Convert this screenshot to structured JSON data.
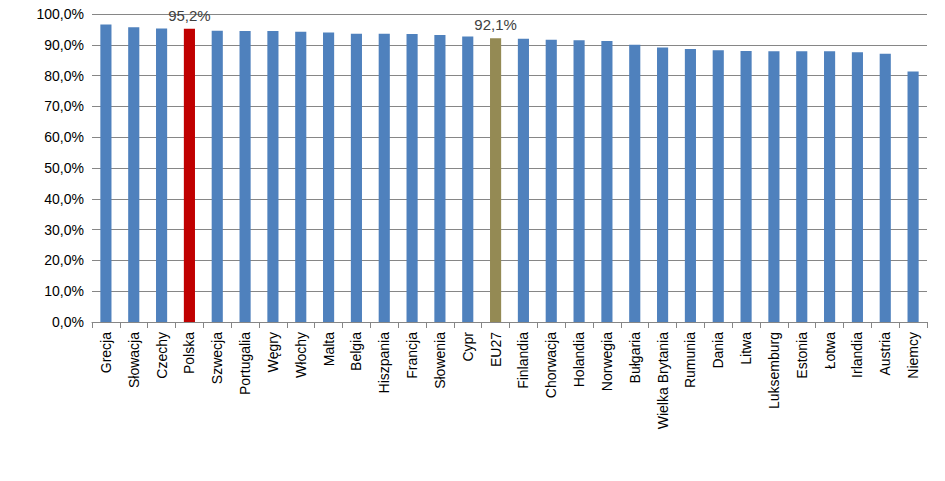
{
  "chart_data": {
    "type": "bar",
    "categories": [
      "Grecja",
      "Słowacja",
      "Czechy",
      "Polska",
      "Szwecja",
      "Portugalia",
      "Węgry",
      "Włochy",
      "Malta",
      "Belgia",
      "Hiszpania",
      "Francja",
      "Słowenia",
      "Cypr",
      "EU27",
      "Finlandia",
      "Chorwacja",
      "Holandia",
      "Norwegia",
      "Bułgaria",
      "Wielka Brytania",
      "Rumunia",
      "Dania",
      "Litwa",
      "Luksemburg",
      "Estonia",
      "Łotwa",
      "Irlandia",
      "Austria",
      "Niemcy"
    ],
    "values": [
      96.6,
      95.7,
      95.3,
      95.2,
      94.6,
      94.5,
      94.5,
      94.2,
      94.0,
      93.6,
      93.6,
      93.5,
      93.2,
      92.7,
      92.1,
      92.0,
      91.6,
      91.5,
      91.2,
      90.0,
      89.1,
      88.6,
      88.2,
      88.0,
      87.9,
      87.9,
      87.9,
      87.6,
      87.1,
      81.3
    ],
    "value_labels": [
      null,
      null,
      null,
      "95,2%",
      null,
      null,
      null,
      null,
      null,
      null,
      null,
      null,
      null,
      null,
      "92,1%",
      null,
      null,
      null,
      null,
      null,
      null,
      null,
      null,
      null,
      null,
      null,
      null,
      null,
      null,
      null
    ],
    "colors": [
      "#4F81BD",
      "#4F81BD",
      "#4F81BD",
      "#C00000",
      "#4F81BD",
      "#4F81BD",
      "#4F81BD",
      "#4F81BD",
      "#4F81BD",
      "#4F81BD",
      "#4F81BD",
      "#4F81BD",
      "#4F81BD",
      "#4F81BD",
      "#948A54",
      "#4F81BD",
      "#4F81BD",
      "#4F81BD",
      "#4F81BD",
      "#4F81BD",
      "#4F81BD",
      "#4F81BD",
      "#4F81BD",
      "#4F81BD",
      "#4F81BD",
      "#4F81BD",
      "#4F81BD",
      "#4F81BD",
      "#4F81BD",
      "#4F81BD"
    ],
    "ylim": [
      0,
      100
    ],
    "yticks": [
      {
        "value": 0,
        "label": "0,0%"
      },
      {
        "value": 10,
        "label": "10,0%"
      },
      {
        "value": 20,
        "label": "20,0%"
      },
      {
        "value": 30,
        "label": "30,0%"
      },
      {
        "value": 40,
        "label": "40,0%"
      },
      {
        "value": 50,
        "label": "50,0%"
      },
      {
        "value": 60,
        "label": "60,0%"
      },
      {
        "value": 70,
        "label": "70,0%"
      },
      {
        "value": 80,
        "label": "80,0%"
      },
      {
        "value": 90,
        "label": "90,0%"
      },
      {
        "value": 100,
        "label": "100,0%"
      }
    ],
    "grid": true,
    "data_labels": true
  }
}
